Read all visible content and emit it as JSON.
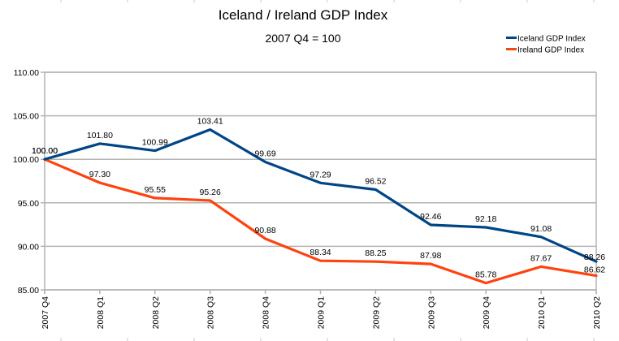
{
  "chart_data": {
    "type": "line",
    "title": "Iceland / Ireland GDP Index",
    "subtitle": "2007 Q4 = 100",
    "xlabel": "",
    "ylabel": "",
    "categories": [
      "2007 Q4",
      "2008 Q1",
      "2008 Q2",
      "2008 Q3",
      "2008 Q4",
      "2009 Q1",
      "2009 Q2",
      "2009 Q3",
      "2009 Q4",
      "2010 Q1",
      "2010 Q2"
    ],
    "ylim": [
      85,
      110
    ],
    "yticks": [
      85,
      90,
      95,
      100,
      105,
      110
    ],
    "ytick_labels": [
      "85.00",
      "90.00",
      "95.00",
      "100.00",
      "105.00",
      "110.00"
    ],
    "grid": true,
    "legend_position": "top-right",
    "series": [
      {
        "name": "Iceland GDP Index",
        "color": "#004586",
        "values": [
          100.0,
          101.8,
          100.99,
          103.41,
          99.69,
          97.29,
          96.52,
          92.46,
          92.18,
          91.08,
          88.26
        ],
        "labels": [
          "100.00",
          "101.80",
          "100.99",
          "103.41",
          "99.69",
          "97.29",
          "96.52",
          "92.46",
          "92.18",
          "91.08",
          "88.26"
        ]
      },
      {
        "name": "Ireland GDP Index",
        "color": "#ff420e",
        "values": [
          100.0,
          97.3,
          95.55,
          95.26,
          90.88,
          88.34,
          88.25,
          87.98,
          85.78,
          87.67,
          86.62
        ],
        "labels": [
          "100.00",
          "97.30",
          "95.55",
          "95.26",
          "90.88",
          "88.34",
          "88.25",
          "87.98",
          "85.78",
          "87.67",
          "86.62"
        ]
      }
    ]
  }
}
